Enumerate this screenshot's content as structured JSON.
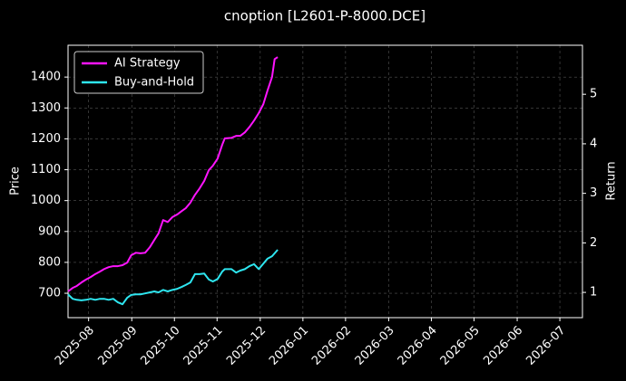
{
  "chart_data": {
    "type": "line",
    "title": "cnoption [L2601-P-8000.DCE]",
    "ylabel": "Price",
    "y2label": "Return",
    "xlim": [
      2025.543,
      2026.544
    ],
    "xticks": [
      {
        "value": 2025.583,
        "label": "2025-08"
      },
      {
        "value": 2025.667,
        "label": "2025-09"
      },
      {
        "value": 2025.75,
        "label": "2025-10"
      },
      {
        "value": 2025.833,
        "label": "2025-11"
      },
      {
        "value": 2025.917,
        "label": "2025-12"
      },
      {
        "value": 2026.0,
        "label": "2026-01"
      },
      {
        "value": 2026.083,
        "label": "2026-02"
      },
      {
        "value": 2026.167,
        "label": "2026-03"
      },
      {
        "value": 2026.25,
        "label": "2026-04"
      },
      {
        "value": 2026.333,
        "label": "2026-05"
      },
      {
        "value": 2026.417,
        "label": "2026-06"
      },
      {
        "value": 2026.5,
        "label": "2026-07"
      }
    ],
    "ylim": [
      621,
      1503
    ],
    "yticks": [
      700,
      800,
      900,
      1000,
      1100,
      1200,
      1300,
      1400
    ],
    "y2lim": [
      0.49,
      5.99
    ],
    "y2ticks": [
      1,
      2,
      3,
      4,
      5
    ],
    "grid": true,
    "legend": "upper-left",
    "x": [
      2025.543,
      2025.552,
      2025.56,
      2025.569,
      2025.578,
      2025.587,
      2025.596,
      2025.605,
      2025.613,
      2025.622,
      2025.631,
      2025.64,
      2025.649,
      2025.658,
      2025.666,
      2025.675,
      2025.684,
      2025.693,
      2025.702,
      2025.711,
      2025.719,
      2025.728,
      2025.737,
      2025.746,
      2025.755,
      2025.764,
      2025.772,
      2025.781,
      2025.79,
      2025.799,
      2025.808,
      2025.817,
      2025.825,
      2025.834,
      2025.843,
      2025.848,
      2025.861,
      2025.87,
      2025.878,
      2025.887,
      2025.896,
      2025.905,
      2025.914,
      2025.923,
      2025.931,
      2025.94,
      2025.945,
      2025.951
    ],
    "series": [
      {
        "name": "AI Strategy",
        "color": "#ff14ff",
        "axis": "y2",
        "values": [
          1.02,
          1.09,
          1.13,
          1.2,
          1.26,
          1.31,
          1.37,
          1.42,
          1.47,
          1.51,
          1.53,
          1.53,
          1.55,
          1.6,
          1.75,
          1.8,
          1.79,
          1.8,
          1.91,
          2.06,
          2.19,
          2.46,
          2.42,
          2.52,
          2.57,
          2.64,
          2.7,
          2.81,
          2.97,
          3.1,
          3.25,
          3.47,
          3.56,
          3.7,
          3.98,
          4.11,
          4.12,
          4.16,
          4.16,
          4.23,
          4.34,
          4.47,
          4.62,
          4.8,
          5.07,
          5.35,
          5.71,
          5.75
        ]
      },
      {
        "name": "Buy-and-Hold",
        "color": "#2ee6f0",
        "axis": "y2",
        "values": [
          0.96,
          0.87,
          0.85,
          0.84,
          0.85,
          0.87,
          0.85,
          0.87,
          0.87,
          0.85,
          0.87,
          0.8,
          0.76,
          0.89,
          0.95,
          0.96,
          0.96,
          0.98,
          1.0,
          1.02,
          1.0,
          1.05,
          1.02,
          1.05,
          1.07,
          1.11,
          1.15,
          1.2,
          1.37,
          1.37,
          1.38,
          1.26,
          1.22,
          1.27,
          1.42,
          1.47,
          1.47,
          1.4,
          1.44,
          1.47,
          1.53,
          1.57,
          1.47,
          1.58,
          1.68,
          1.73,
          1.79,
          1.86
        ]
      }
    ]
  }
}
